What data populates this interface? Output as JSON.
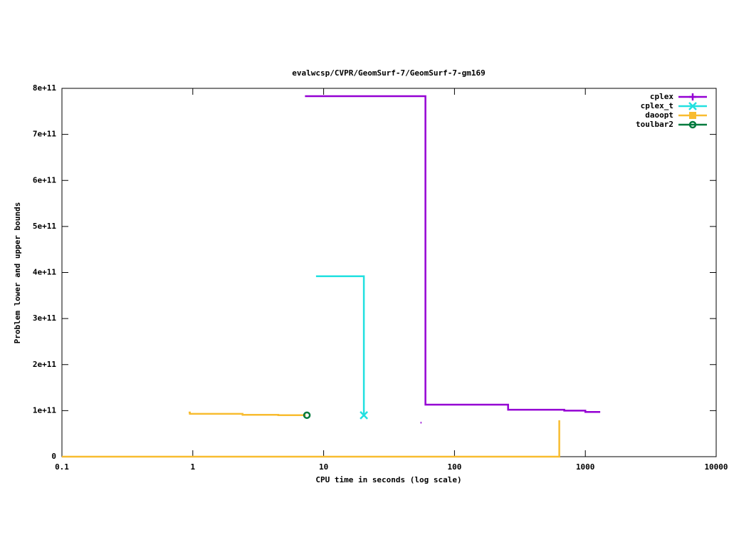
{
  "chart_data": {
    "type": "line",
    "title": "evalwcsp/CVPR/GeomSurf-7/GeomSurf-7-gm169",
    "xlabel": "CPU time in seconds (log scale)",
    "ylabel": "Problem lower and upper bounds",
    "xscale": "log",
    "xlim": [
      0.1,
      10000
    ],
    "xticks": [
      0.1,
      1,
      10,
      100,
      1000,
      10000
    ],
    "ylim": [
      0,
      800000000000
    ],
    "yticks": [
      0,
      {
        "value": 100000000000,
        "label": "1e+11"
      },
      {
        "value": 200000000000,
        "label": "2e+11"
      },
      {
        "value": 300000000000,
        "label": "3e+11"
      },
      {
        "value": 400000000000,
        "label": "4e+11"
      },
      {
        "value": 500000000000,
        "label": "5e+11"
      },
      {
        "value": 600000000000,
        "label": "6e+11"
      },
      {
        "value": 700000000000,
        "label": "7e+11"
      },
      {
        "value": 800000000000,
        "label": "8e+11"
      }
    ],
    "legend": "top-right",
    "series": [
      {
        "name": "cplex",
        "color": "#9400d3",
        "marker": "plus",
        "end_marker": false,
        "x": [
          7.2,
          60,
          60,
          257,
          257,
          690,
          690,
          1000,
          1000,
          1300,
          1300,
          55,
          56
        ],
        "values": [
          783000000000,
          783000000000,
          113000000000,
          113000000000,
          102000000000,
          102000000000,
          100000000000,
          100000000000,
          97000000000,
          97000000000,
          null,
          74000000000,
          74000000000
        ]
      },
      {
        "name": "cplex_t",
        "color": "#22e0e0",
        "marker": "cross",
        "end_marker": true,
        "x": [
          8.75,
          20.3,
          20.3
        ],
        "values": [
          392000000000,
          392000000000,
          90000000000
        ]
      },
      {
        "name": "daoopt",
        "color": "#f8bc30",
        "marker": "square",
        "end_marker": false,
        "x": [
          0.93,
          0.95,
          0.95,
          2.4,
          2.4,
          4.5,
          4.5,
          7.3,
          7.3,
          0.1,
          632,
          632
        ],
        "values": [
          96000000000,
          96000000000,
          93000000000,
          93000000000,
          91000000000,
          91000000000,
          90000000000,
          90000000000,
          null,
          0,
          0,
          79000000000
        ]
      },
      {
        "name": "toulbar2",
        "color": "#007a3d",
        "marker": "circle",
        "end_marker": true,
        "x": [
          7.45
        ],
        "values": [
          90000000000
        ]
      }
    ]
  }
}
